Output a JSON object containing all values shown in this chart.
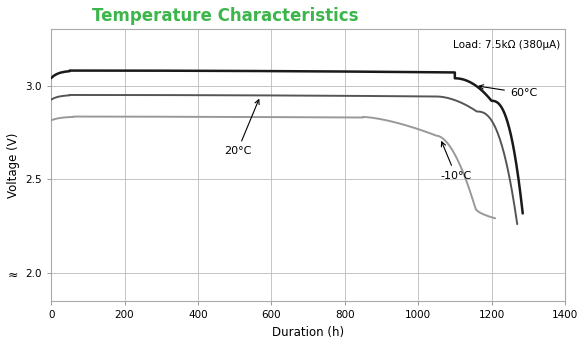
{
  "title": "Temperature Characteristics",
  "title_color": "#3cb54a",
  "xlabel": "Duration (h)",
  "ylabel": "Voltage (V)",
  "annotation_load": "Load: 7.5kΩ (380μA)",
  "xlim": [
    0,
    1400
  ],
  "ylim": [
    1.85,
    3.3
  ],
  "yticks": [
    2.0,
    2.5,
    3.0
  ],
  "xticks": [
    0,
    200,
    400,
    600,
    800,
    1000,
    1200,
    1400
  ],
  "background_color": "#ffffff",
  "grid_color": "#bbbbbb",
  "curve_60C_color": "#1a1a1a",
  "curve_20C_color": "#555555",
  "curve_m10C_color": "#999999",
  "label_60C": "60°C",
  "label_20C": "20°C",
  "label_m10C": "-10°C"
}
